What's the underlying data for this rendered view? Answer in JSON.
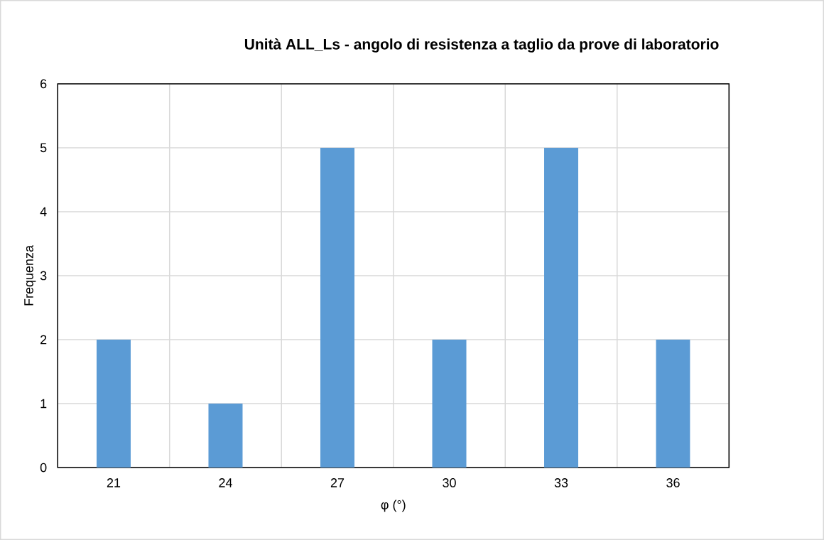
{
  "chart_data": {
    "type": "bar",
    "title": "Unità ALL_Ls - angolo di resistenza a taglio da prove di laboratorio",
    "xlabel": "φ (°)",
    "ylabel": "Frequenza",
    "categories": [
      "21",
      "24",
      "27",
      "30",
      "33",
      "36"
    ],
    "values": [
      2,
      1,
      5,
      2,
      5,
      2
    ],
    "color": "#5b9bd5",
    "ylim": [
      0,
      6
    ],
    "yticks": [
      0,
      1,
      2,
      3,
      4,
      5,
      6
    ],
    "grid": true
  }
}
